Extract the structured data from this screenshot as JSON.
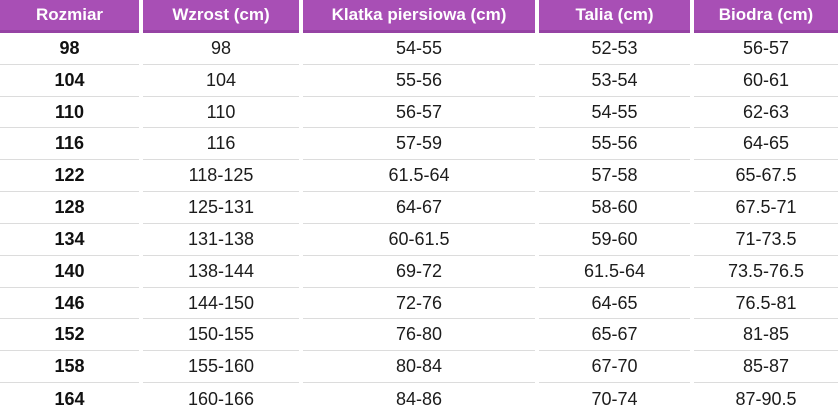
{
  "table": {
    "headers": [
      "Rozmiar",
      "Wzrost (cm)",
      "Klatka piersiowa (cm)",
      "Talia (cm)",
      "Biodra (cm)"
    ],
    "rows": [
      [
        "98",
        "98",
        "54-55",
        "52-53",
        "56-57"
      ],
      [
        "104",
        "104",
        "55-56",
        "53-54",
        "60-61"
      ],
      [
        "110",
        "110",
        "56-57",
        "54-55",
        "62-63"
      ],
      [
        "116",
        "116",
        "57-59",
        "55-56",
        "64-65"
      ],
      [
        "122",
        "118-125",
        "61.5-64",
        "57-58",
        "65-67.5"
      ],
      [
        "128",
        "125-131",
        "64-67",
        "58-60",
        "67.5-71"
      ],
      [
        "134",
        "131-138",
        "60-61.5",
        "59-60",
        "71-73.5"
      ],
      [
        "140",
        "138-144",
        "69-72",
        "61.5-64",
        "73.5-76.5"
      ],
      [
        "146",
        "144-150",
        "72-76",
        "64-65",
        "76.5-81"
      ],
      [
        "152",
        "150-155",
        "76-80",
        "65-67",
        "81-85"
      ],
      [
        "158",
        "155-160",
        "80-84",
        "67-70",
        "85-87"
      ],
      [
        "164",
        "160-166",
        "84-86",
        "70-74",
        "87-90.5"
      ]
    ]
  },
  "colors": {
    "header_bg": "#a84fb5",
    "header_border": "#9643a4",
    "header_text": "#ffffff",
    "row_separator": "#dcdcdc",
    "body_text": "#1c1c1c"
  },
  "chart_data": {
    "type": "table",
    "title": "",
    "columns": [
      "Rozmiar",
      "Wzrost (cm)",
      "Klatka piersiowa (cm)",
      "Talia (cm)",
      "Biodra (cm)"
    ],
    "rows": [
      [
        "98",
        "98",
        "54-55",
        "52-53",
        "56-57"
      ],
      [
        "104",
        "104",
        "55-56",
        "53-54",
        "60-61"
      ],
      [
        "110",
        "110",
        "56-57",
        "54-55",
        "62-63"
      ],
      [
        "116",
        "116",
        "57-59",
        "55-56",
        "64-65"
      ],
      [
        "122",
        "118-125",
        "61.5-64",
        "57-58",
        "65-67.5"
      ],
      [
        "128",
        "125-131",
        "64-67",
        "58-60",
        "67.5-71"
      ],
      [
        "134",
        "131-138",
        "60-61.5",
        "59-60",
        "71-73.5"
      ],
      [
        "140",
        "138-144",
        "69-72",
        "61.5-64",
        "73.5-76.5"
      ],
      [
        "146",
        "144-150",
        "72-76",
        "64-65",
        "76.5-81"
      ],
      [
        "152",
        "150-155",
        "76-80",
        "65-67",
        "81-85"
      ],
      [
        "158",
        "155-160",
        "80-84",
        "67-70",
        "85-87"
      ],
      [
        "164",
        "160-166",
        "84-86",
        "70-74",
        "87-90.5"
      ]
    ]
  }
}
